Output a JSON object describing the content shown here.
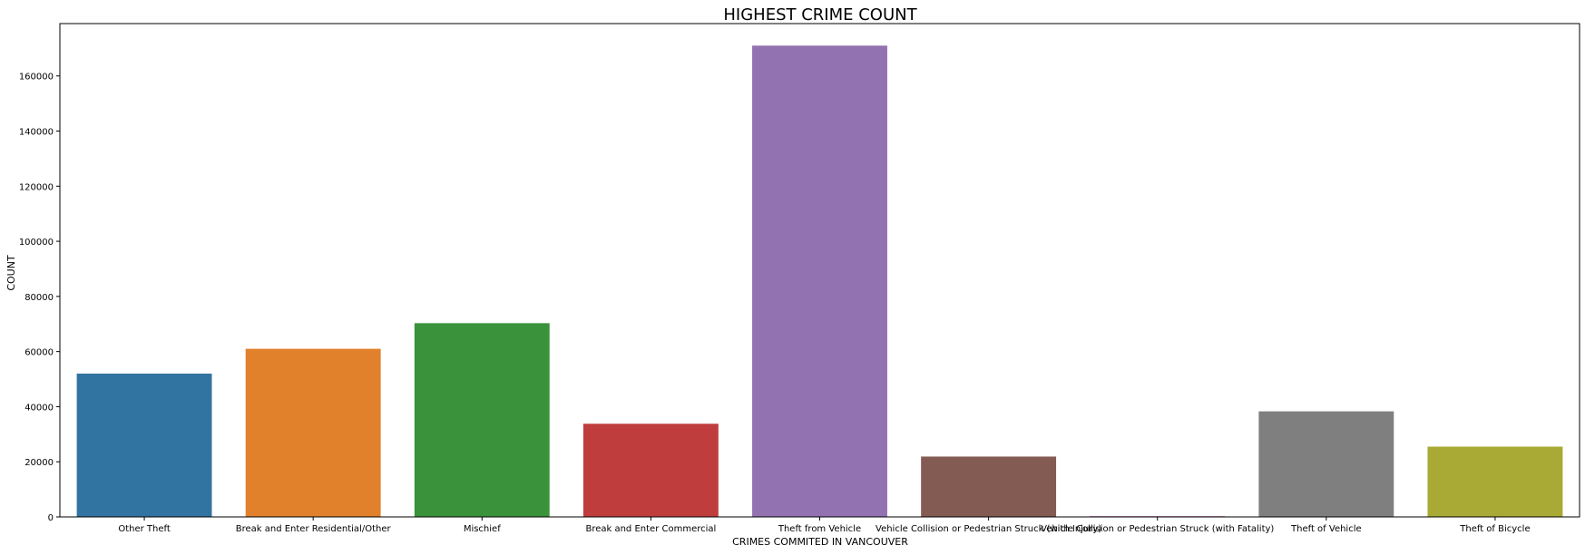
{
  "chart_data": {
    "type": "bar",
    "title": "HIGHEST CRIME COUNT",
    "xlabel": "CRIMES COMMITED IN VANCOUVER",
    "ylabel": "COUNT",
    "categories": [
      "Other Theft",
      "Break and Enter Residential/Other",
      "Mischief",
      "Break and Enter Commercial",
      "Theft from Vehicle",
      "Vehicle Collision or Pedestrian Struck (with Injury)",
      "Vehicle Collision or Pedestrian Struck (with Fatality)",
      "Theft of Vehicle",
      "Theft of Bicycle"
    ],
    "values": [
      52000,
      61000,
      70300,
      33800,
      171000,
      21900,
      300,
      38300,
      25500
    ],
    "colors": [
      "#3274a1",
      "#e1812c",
      "#3a923a",
      "#c03d3e",
      "#9372b2",
      "#845b53",
      "#d684bd",
      "#7f7f7f",
      "#a9aa35"
    ],
    "ylim": [
      0,
      179000
    ],
    "yticks": [
      0,
      20000,
      40000,
      60000,
      80000,
      100000,
      120000,
      140000,
      160000
    ],
    "grid": false,
    "legend": "none"
  }
}
